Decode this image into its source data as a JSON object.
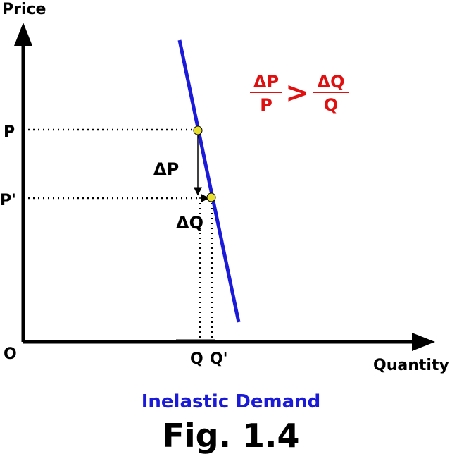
{
  "axes": {
    "y_label": "Price",
    "x_label": "Quantity",
    "origin": "O"
  },
  "price_labels": {
    "p": "P",
    "p_prime": "P'"
  },
  "quantity_labels": {
    "q": "Q",
    "q_prime": "Q'"
  },
  "changes": {
    "delta_p": "ΔP",
    "delta_q": "ΔQ"
  },
  "formula": {
    "left_numerator": "ΔP",
    "left_denominator": "P",
    "relation": ">",
    "right_numerator": "ΔQ",
    "right_denominator": "Q"
  },
  "caption": {
    "subtitle": "Inelastic Demand",
    "figure": "Fig. 1.4"
  }
}
